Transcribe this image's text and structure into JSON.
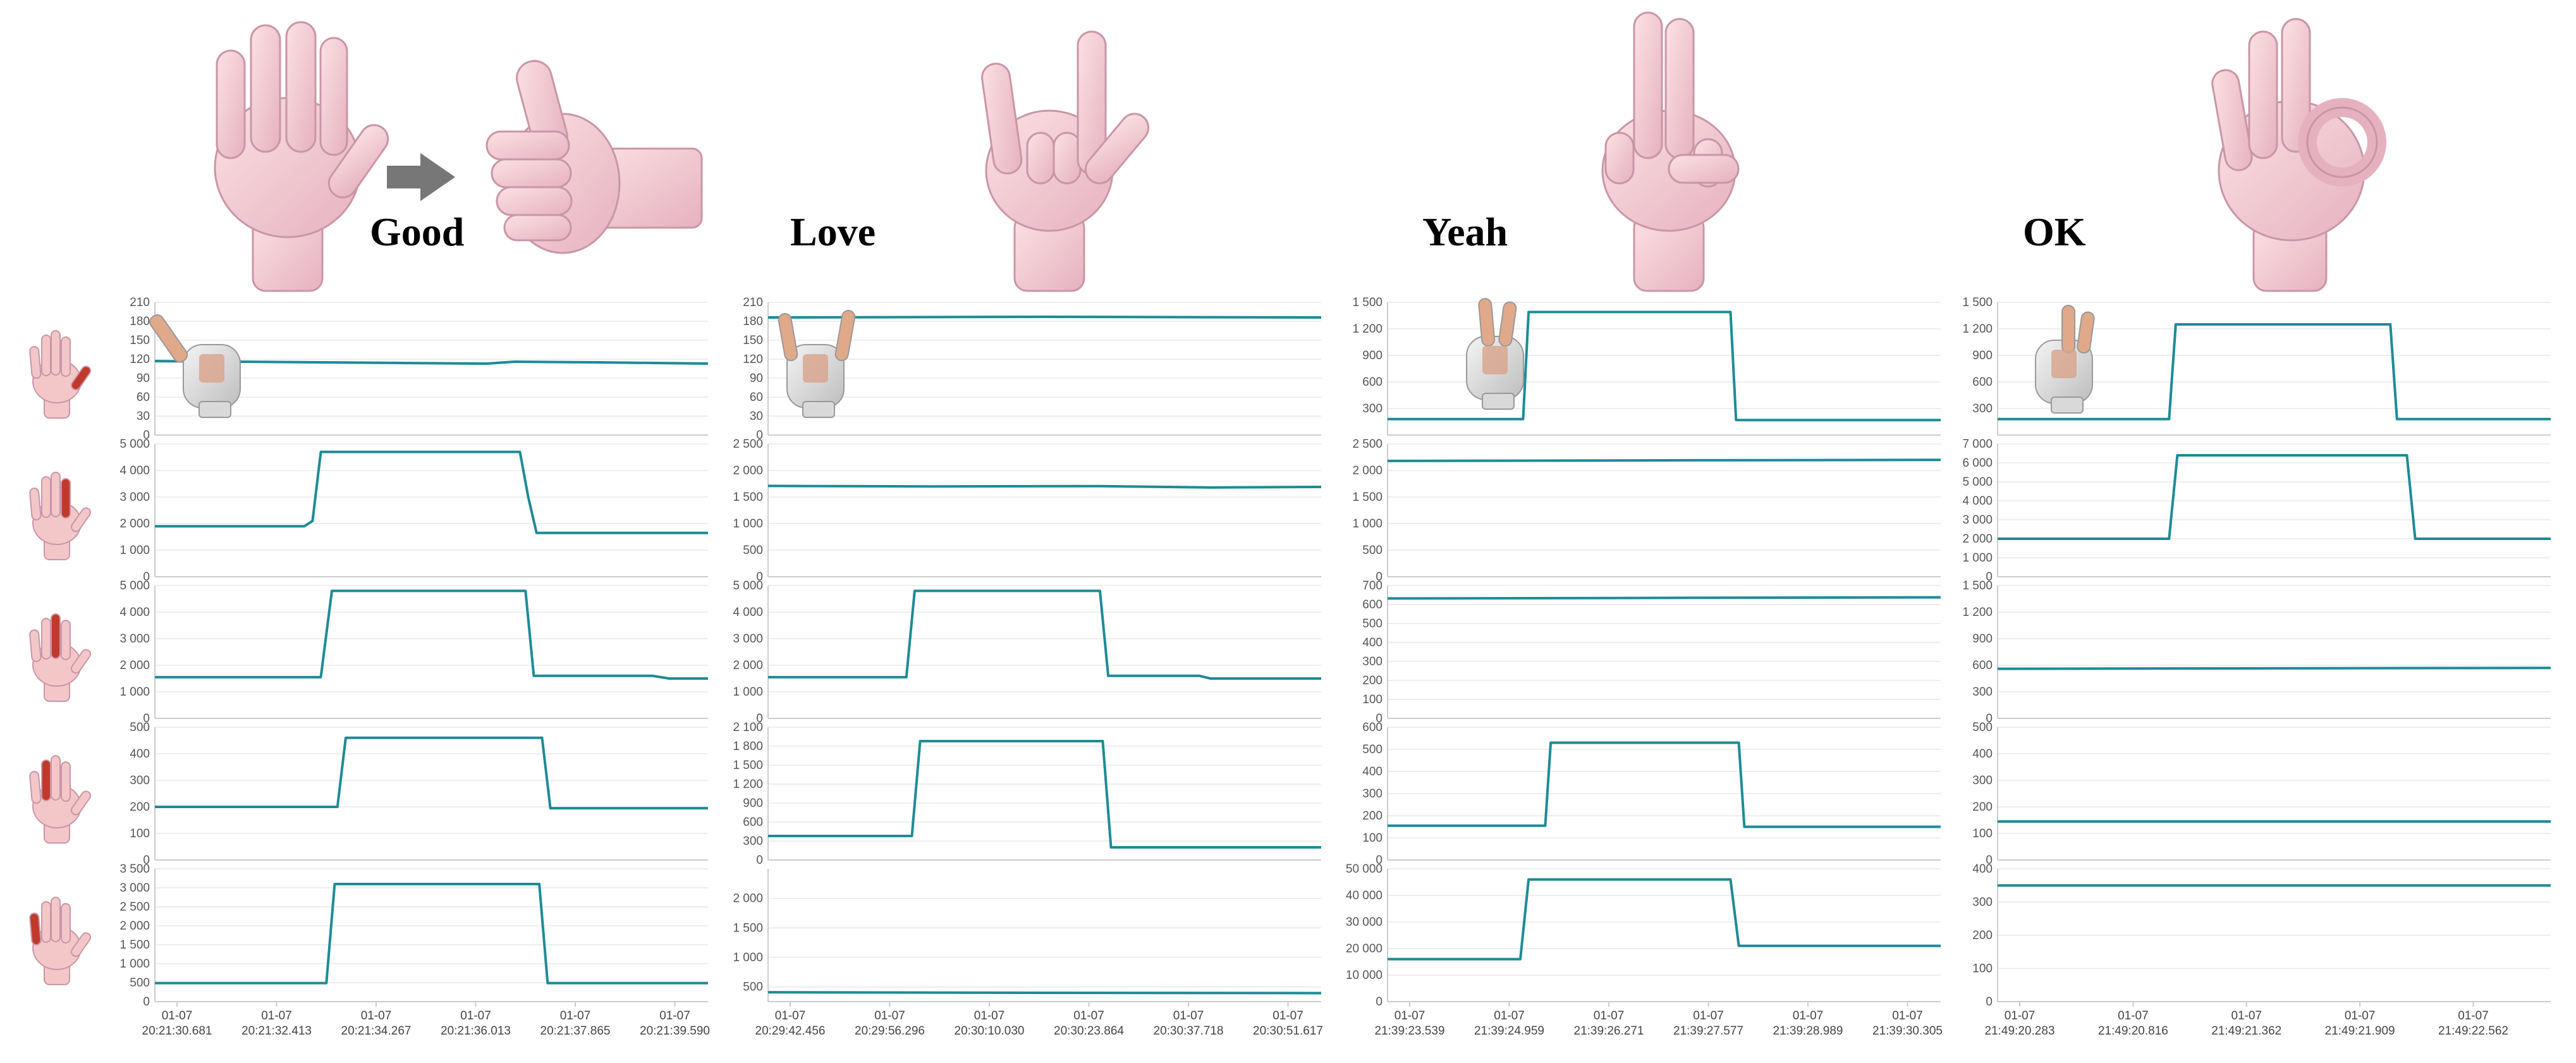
{
  "figure": {
    "gestures": [
      "Good",
      "Love",
      "Yeah",
      "OK"
    ],
    "colors": {
      "trace": "#1d8b96",
      "grid": "#e8e8e8",
      "axis": "#cccccc",
      "skin": "#f3c6c8",
      "finger_highlight": "#c0392b",
      "arrow": "#777777"
    },
    "icons": [
      "open-palm-hand-icon",
      "right-arrow-icon",
      "thumbs-up-hand-icon",
      "love-sign-hand-icon",
      "victory-sign-hand-icon",
      "ok-sign-hand-icon",
      "gloved-hand-photo-icon",
      "finger-highlight-hand-icon"
    ],
    "finger_rows": [
      "thumb",
      "index",
      "middle",
      "ring",
      "little"
    ]
  },
  "chart_data": [
    {
      "type": "line",
      "gesture": "Good",
      "x_ticks": [
        "01-07\n20:21:30.681",
        "01-07\n20:21:32.413",
        "01-07\n20:21:34.267",
        "01-07\n20:21:36.013",
        "01-07\n20:21:37.865",
        "01-07\n20:21:39.590"
      ],
      "panels": [
        {
          "finger": "thumb",
          "ylim": [
            0,
            210
          ],
          "yticks": [
            0,
            30,
            60,
            90,
            120,
            150,
            180,
            210
          ],
          "x": [
            0,
            0.3,
            0.6,
            0.65,
            0.8,
            1
          ],
          "y": [
            117,
            115,
            113,
            116,
            115,
            113
          ]
        },
        {
          "finger": "index",
          "ylim": [
            0,
            5000
          ],
          "yticks": [
            0,
            1000,
            2000,
            3000,
            4000,
            5000
          ],
          "x": [
            0,
            0.27,
            0.285,
            0.3,
            0.66,
            0.675,
            0.69,
            1
          ],
          "y": [
            1900,
            1900,
            2100,
            4700,
            4700,
            3000,
            1650,
            1650
          ]
        },
        {
          "finger": "middle",
          "ylim": [
            0,
            5000
          ],
          "yticks": [
            0,
            1000,
            2000,
            3000,
            4000,
            5000
          ],
          "x": [
            0,
            0.3,
            0.32,
            0.67,
            0.685,
            0.9,
            0.93,
            1
          ],
          "y": [
            1550,
            1550,
            4800,
            4800,
            1600,
            1600,
            1500,
            1500
          ]
        },
        {
          "finger": "ring",
          "ylim": [
            0,
            500
          ],
          "yticks": [
            0,
            100,
            200,
            300,
            400,
            500
          ],
          "x": [
            0,
            0.33,
            0.345,
            0.7,
            0.715,
            1
          ],
          "y": [
            200,
            200,
            460,
            460,
            195,
            195
          ]
        },
        {
          "finger": "little",
          "ylim": [
            0,
            3500
          ],
          "yticks": [
            0,
            500,
            1000,
            1500,
            2000,
            2500,
            3000,
            3500
          ],
          "x": [
            0,
            0.31,
            0.325,
            0.695,
            0.71,
            1
          ],
          "y": [
            490,
            490,
            3100,
            3100,
            490,
            490
          ]
        }
      ]
    },
    {
      "type": "line",
      "gesture": "Love",
      "x_ticks": [
        "01-07\n20:29:42.456",
        "01-07\n20:29:56.296",
        "01-07\n20:30:10.030",
        "01-07\n20:30:23.864",
        "01-07\n20:30:37.718",
        "01-07\n20:30:51.617"
      ],
      "panels": [
        {
          "finger": "thumb",
          "ylim": [
            0,
            210
          ],
          "yticks": [
            0,
            30,
            60,
            90,
            120,
            150,
            180,
            210
          ],
          "x": [
            0,
            0.5,
            1
          ],
          "y": [
            186,
            187,
            186
          ]
        },
        {
          "finger": "index",
          "ylim": [
            0,
            2500
          ],
          "yticks": [
            0,
            500,
            1000,
            1500,
            2000,
            2500
          ],
          "x": [
            0,
            0.3,
            0.6,
            0.8,
            1
          ],
          "y": [
            1710,
            1700,
            1705,
            1680,
            1690
          ]
        },
        {
          "finger": "middle",
          "ylim": [
            0,
            5000
          ],
          "yticks": [
            0,
            1000,
            2000,
            3000,
            4000,
            5000
          ],
          "x": [
            0,
            0.25,
            0.265,
            0.6,
            0.615,
            0.78,
            0.8,
            1
          ],
          "y": [
            1550,
            1550,
            4800,
            4800,
            1600,
            1600,
            1500,
            1500
          ]
        },
        {
          "finger": "ring",
          "ylim": [
            0,
            2100
          ],
          "yticks": [
            0,
            300,
            600,
            900,
            1200,
            1500,
            1800,
            2100
          ],
          "x": [
            0,
            0.26,
            0.275,
            0.605,
            0.62,
            1
          ],
          "y": [
            380,
            380,
            1880,
            1880,
            200,
            200
          ]
        },
        {
          "finger": "little",
          "ylim": [
            250,
            2500
          ],
          "yticks": [
            500,
            1000,
            1500,
            2000
          ],
          "x": [
            0,
            0.5,
            1
          ],
          "y": [
            410,
            400,
            395
          ]
        }
      ]
    },
    {
      "type": "line",
      "gesture": "Yeah",
      "x_ticks": [
        "01-07\n21:39:23.539",
        "01-07\n21:39:24.959",
        "01-07\n21:39:26.271",
        "01-07\n21:39:27.577",
        "01-07\n21:39:28.989",
        "01-07\n21:39:30.305"
      ],
      "panels": [
        {
          "finger": "thumb",
          "ylim": [
            0,
            1500
          ],
          "yticks": [
            300,
            600,
            900,
            1200,
            1500
          ],
          "x": [
            0,
            0.245,
            0.255,
            0.62,
            0.63,
            1
          ],
          "y": [
            180,
            180,
            1390,
            1390,
            170,
            170
          ]
        },
        {
          "finger": "index",
          "ylim": [
            0,
            2500
          ],
          "yticks": [
            0,
            500,
            1000,
            1500,
            2000,
            2500
          ],
          "x": [
            0,
            0.5,
            1
          ],
          "y": [
            2180,
            2190,
            2200
          ]
        },
        {
          "finger": "middle",
          "ylim": [
            0,
            700
          ],
          "yticks": [
            0,
            100,
            200,
            300,
            400,
            500,
            600,
            700
          ],
          "x": [
            0,
            0.5,
            1
          ],
          "y": [
            632,
            635,
            638
          ]
        },
        {
          "finger": "ring",
          "ylim": [
            0,
            600
          ],
          "yticks": [
            0,
            100,
            200,
            300,
            400,
            500,
            600
          ],
          "x": [
            0,
            0.285,
            0.295,
            0.635,
            0.645,
            1
          ],
          "y": [
            155,
            155,
            530,
            530,
            150,
            150
          ]
        },
        {
          "finger": "little",
          "ylim": [
            0,
            50000
          ],
          "yticks": [
            0,
            10000,
            20000,
            30000,
            40000,
            50000
          ],
          "x": [
            0,
            0.24,
            0.255,
            0.62,
            0.635,
            1
          ],
          "y": [
            16000,
            16000,
            46000,
            46000,
            21000,
            21000
          ]
        }
      ]
    },
    {
      "type": "line",
      "gesture": "OK",
      "x_ticks": [
        "01-07\n21:49:20.283",
        "01-07\n21:49:20.816",
        "01-07\n21:49:21.362",
        "01-07\n21:49:21.909",
        "01-07\n21:49:22.562"
      ],
      "panels": [
        {
          "finger": "thumb",
          "ylim": [
            0,
            1500
          ],
          "yticks": [
            300,
            600,
            900,
            1200,
            1500
          ],
          "x": [
            0,
            0.31,
            0.322,
            0.71,
            0.722,
            1
          ],
          "y": [
            180,
            180,
            1250,
            1250,
            180,
            180
          ]
        },
        {
          "finger": "index",
          "ylim": [
            0,
            7000
          ],
          "yticks": [
            0,
            1000,
            2000,
            3000,
            4000,
            5000,
            6000,
            7000
          ],
          "x": [
            0,
            0.31,
            0.325,
            0.74,
            0.755,
            1
          ],
          "y": [
            2000,
            2000,
            6400,
            6400,
            2000,
            2000
          ]
        },
        {
          "finger": "middle",
          "ylim": [
            0,
            1500
          ],
          "yticks": [
            0,
            300,
            600,
            900,
            1200,
            1500
          ],
          "x": [
            0,
            0.5,
            1
          ],
          "y": [
            560,
            565,
            570
          ]
        },
        {
          "finger": "ring",
          "ylim": [
            0,
            500
          ],
          "yticks": [
            0,
            100,
            200,
            300,
            400,
            500
          ],
          "x": [
            0,
            0.5,
            1
          ],
          "y": [
            145,
            145,
            145
          ]
        },
        {
          "finger": "little",
          "ylim": [
            0,
            400
          ],
          "yticks": [
            0,
            100,
            200,
            300,
            400
          ],
          "x": [
            0,
            0.5,
            1
          ],
          "y": [
            350,
            350,
            350
          ]
        }
      ]
    }
  ]
}
